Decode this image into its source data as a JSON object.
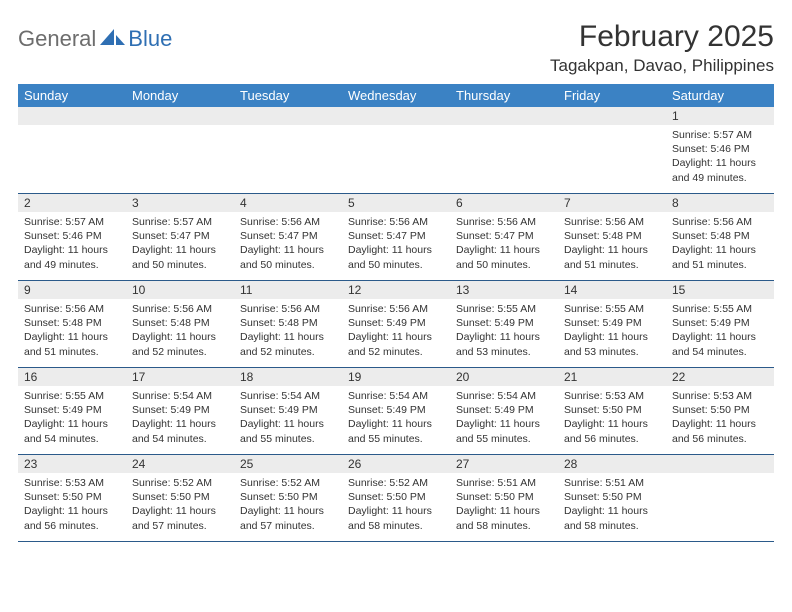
{
  "logo": {
    "text1": "General",
    "text2": "Blue"
  },
  "title": "February 2025",
  "location": "Tagakpan, Davao, Philippines",
  "colors": {
    "header_bg": "#3b82c4",
    "header_text": "#ffffff",
    "daynum_bg": "#ececec",
    "row_border": "#2b5a8a",
    "logo_gray": "#6d6d6d",
    "logo_blue": "#2f6fb3",
    "text": "#333333"
  },
  "columns": [
    "Sunday",
    "Monday",
    "Tuesday",
    "Wednesday",
    "Thursday",
    "Friday",
    "Saturday"
  ],
  "weeks": [
    [
      {
        "day": "",
        "lines": []
      },
      {
        "day": "",
        "lines": []
      },
      {
        "day": "",
        "lines": []
      },
      {
        "day": "",
        "lines": []
      },
      {
        "day": "",
        "lines": []
      },
      {
        "day": "",
        "lines": []
      },
      {
        "day": "1",
        "lines": [
          "Sunrise: 5:57 AM",
          "Sunset: 5:46 PM",
          "Daylight: 11 hours and 49 minutes."
        ]
      }
    ],
    [
      {
        "day": "2",
        "lines": [
          "Sunrise: 5:57 AM",
          "Sunset: 5:46 PM",
          "Daylight: 11 hours and 49 minutes."
        ]
      },
      {
        "day": "3",
        "lines": [
          "Sunrise: 5:57 AM",
          "Sunset: 5:47 PM",
          "Daylight: 11 hours and 50 minutes."
        ]
      },
      {
        "day": "4",
        "lines": [
          "Sunrise: 5:56 AM",
          "Sunset: 5:47 PM",
          "Daylight: 11 hours and 50 minutes."
        ]
      },
      {
        "day": "5",
        "lines": [
          "Sunrise: 5:56 AM",
          "Sunset: 5:47 PM",
          "Daylight: 11 hours and 50 minutes."
        ]
      },
      {
        "day": "6",
        "lines": [
          "Sunrise: 5:56 AM",
          "Sunset: 5:47 PM",
          "Daylight: 11 hours and 50 minutes."
        ]
      },
      {
        "day": "7",
        "lines": [
          "Sunrise: 5:56 AM",
          "Sunset: 5:48 PM",
          "Daylight: 11 hours and 51 minutes."
        ]
      },
      {
        "day": "8",
        "lines": [
          "Sunrise: 5:56 AM",
          "Sunset: 5:48 PM",
          "Daylight: 11 hours and 51 minutes."
        ]
      }
    ],
    [
      {
        "day": "9",
        "lines": [
          "Sunrise: 5:56 AM",
          "Sunset: 5:48 PM",
          "Daylight: 11 hours and 51 minutes."
        ]
      },
      {
        "day": "10",
        "lines": [
          "Sunrise: 5:56 AM",
          "Sunset: 5:48 PM",
          "Daylight: 11 hours and 52 minutes."
        ]
      },
      {
        "day": "11",
        "lines": [
          "Sunrise: 5:56 AM",
          "Sunset: 5:48 PM",
          "Daylight: 11 hours and 52 minutes."
        ]
      },
      {
        "day": "12",
        "lines": [
          "Sunrise: 5:56 AM",
          "Sunset: 5:49 PM",
          "Daylight: 11 hours and 52 minutes."
        ]
      },
      {
        "day": "13",
        "lines": [
          "Sunrise: 5:55 AM",
          "Sunset: 5:49 PM",
          "Daylight: 11 hours and 53 minutes."
        ]
      },
      {
        "day": "14",
        "lines": [
          "Sunrise: 5:55 AM",
          "Sunset: 5:49 PM",
          "Daylight: 11 hours and 53 minutes."
        ]
      },
      {
        "day": "15",
        "lines": [
          "Sunrise: 5:55 AM",
          "Sunset: 5:49 PM",
          "Daylight: 11 hours and 54 minutes."
        ]
      }
    ],
    [
      {
        "day": "16",
        "lines": [
          "Sunrise: 5:55 AM",
          "Sunset: 5:49 PM",
          "Daylight: 11 hours and 54 minutes."
        ]
      },
      {
        "day": "17",
        "lines": [
          "Sunrise: 5:54 AM",
          "Sunset: 5:49 PM",
          "Daylight: 11 hours and 54 minutes."
        ]
      },
      {
        "day": "18",
        "lines": [
          "Sunrise: 5:54 AM",
          "Sunset: 5:49 PM",
          "Daylight: 11 hours and 55 minutes."
        ]
      },
      {
        "day": "19",
        "lines": [
          "Sunrise: 5:54 AM",
          "Sunset: 5:49 PM",
          "Daylight: 11 hours and 55 minutes."
        ]
      },
      {
        "day": "20",
        "lines": [
          "Sunrise: 5:54 AM",
          "Sunset: 5:49 PM",
          "Daylight: 11 hours and 55 minutes."
        ]
      },
      {
        "day": "21",
        "lines": [
          "Sunrise: 5:53 AM",
          "Sunset: 5:50 PM",
          "Daylight: 11 hours and 56 minutes."
        ]
      },
      {
        "day": "22",
        "lines": [
          "Sunrise: 5:53 AM",
          "Sunset: 5:50 PM",
          "Daylight: 11 hours and 56 minutes."
        ]
      }
    ],
    [
      {
        "day": "23",
        "lines": [
          "Sunrise: 5:53 AM",
          "Sunset: 5:50 PM",
          "Daylight: 11 hours and 56 minutes."
        ]
      },
      {
        "day": "24",
        "lines": [
          "Sunrise: 5:52 AM",
          "Sunset: 5:50 PM",
          "Daylight: 11 hours and 57 minutes."
        ]
      },
      {
        "day": "25",
        "lines": [
          "Sunrise: 5:52 AM",
          "Sunset: 5:50 PM",
          "Daylight: 11 hours and 57 minutes."
        ]
      },
      {
        "day": "26",
        "lines": [
          "Sunrise: 5:52 AM",
          "Sunset: 5:50 PM",
          "Daylight: 11 hours and 58 minutes."
        ]
      },
      {
        "day": "27",
        "lines": [
          "Sunrise: 5:51 AM",
          "Sunset: 5:50 PM",
          "Daylight: 11 hours and 58 minutes."
        ]
      },
      {
        "day": "28",
        "lines": [
          "Sunrise: 5:51 AM",
          "Sunset: 5:50 PM",
          "Daylight: 11 hours and 58 minutes."
        ]
      },
      {
        "day": "",
        "lines": []
      }
    ]
  ]
}
